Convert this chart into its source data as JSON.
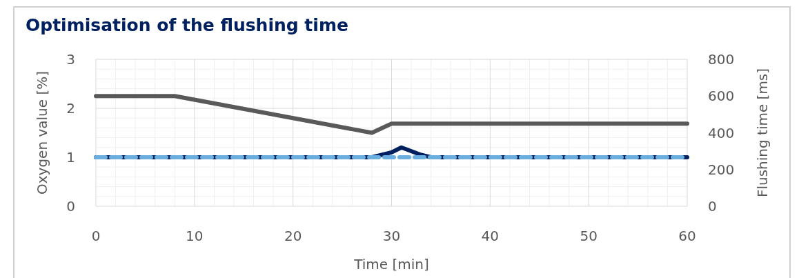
{
  "chart_data": {
    "type": "line",
    "title": "Optimisation of the flushing time",
    "xlabel": "Time [min]",
    "ylabel": "Oxygen value [%]",
    "y2label": "Flushing time [ms]",
    "xlim": [
      0,
      60
    ],
    "xticks": [
      0,
      10,
      20,
      30,
      40,
      50,
      60
    ],
    "ylim": [
      0,
      3
    ],
    "yticks": [
      0,
      1,
      2,
      3
    ],
    "y2lim": [
      0,
      800
    ],
    "y2ticks": [
      0,
      200,
      400,
      600,
      800
    ],
    "grid": true,
    "marker": "none",
    "series": [
      {
        "color": "#595959",
        "axis": "y2",
        "line_style": "solid",
        "x": [
          0,
          8,
          28,
          30,
          60
        ],
        "values": [
          600,
          600,
          400,
          450,
          450
        ]
      },
      {
        "color": "#002060",
        "line_style": "solid",
        "x": [
          0,
          28,
          30,
          31,
          33,
          34,
          60
        ],
        "values": [
          1,
          1,
          1.1,
          1.2,
          1.05,
          1,
          1
        ]
      },
      {
        "color": "#6aaee0",
        "line_style": "dashed",
        "x": [
          0,
          60
        ],
        "values": [
          1,
          1
        ]
      }
    ]
  }
}
